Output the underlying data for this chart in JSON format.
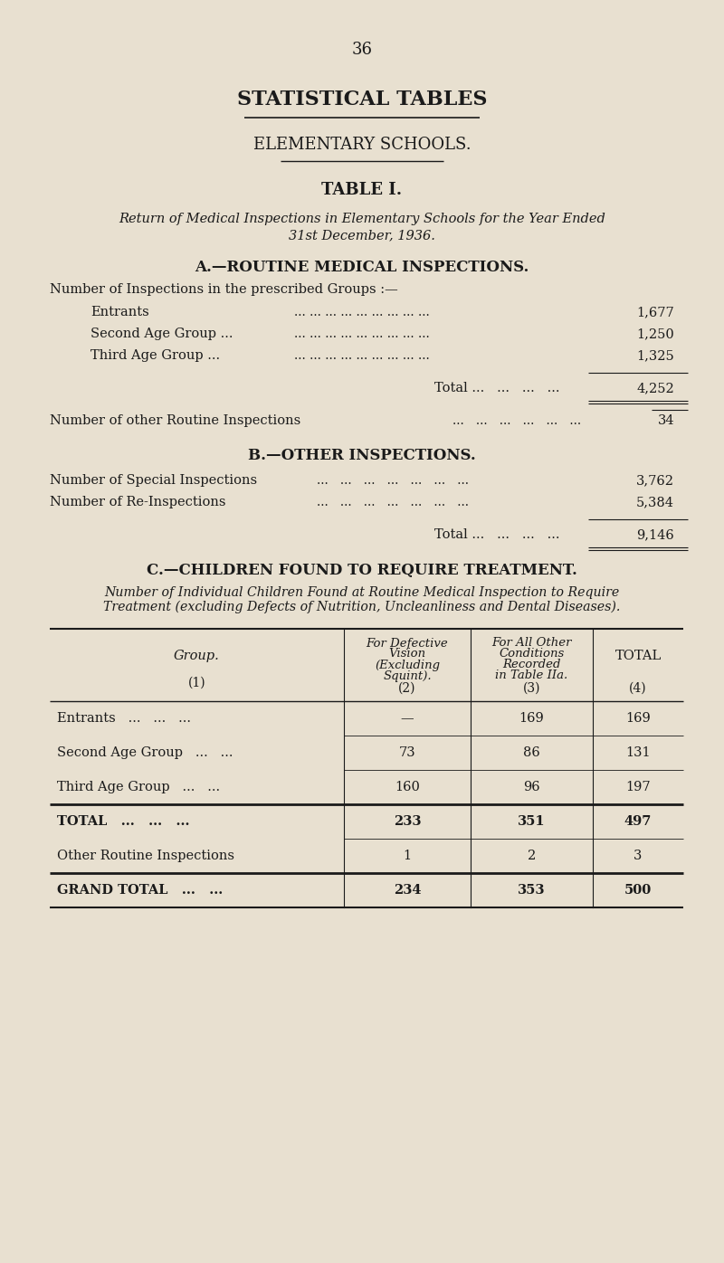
{
  "bg_color": "#e8e0d0",
  "text_color": "#1a1a1a",
  "page_number": "36",
  "main_title": "STATISTICAL TABLES",
  "sub_title": "ELEMENTARY SCHOOLS.",
  "table_title": "TABLE I.",
  "table_subtitle_line1": "Return of Medical Inspections in Elementary Schools for the Year Ended",
  "table_subtitle_line2": "31st December, 1936.",
  "section_a_title": "A.—ROUTINE MEDICAL INSPECTIONS.",
  "section_a_intro": "Number of Inspections in the prescribed Groups :—",
  "section_a_rows": [
    {
      "label": "Entrants",
      "dots": true,
      "value": "1,677"
    },
    {
      "label": "Second Age Group ...",
      "dots": true,
      "value": "1,250"
    },
    {
      "label": "Third Age Group ...",
      "dots": true,
      "value": "1,325"
    }
  ],
  "section_a_total_label": "Total ...",
  "section_a_total_value": "4,252",
  "section_a_other_label": "Number of other Routine Inspections",
  "section_a_other_value": "34",
  "section_b_title": "B.—OTHER INSPECTIONS.",
  "section_b_rows": [
    {
      "label": "Number of Special Inspections",
      "dots": true,
      "value": "3,762"
    },
    {
      "label": "Number of Re-Inspections",
      "dots": true,
      "value": "5,384"
    }
  ],
  "section_b_total_label": "Total ...",
  "section_b_total_value": "9,146",
  "section_c_title": "C.—CHILDREN FOUND TO REQUIRE TREATMENT.",
  "section_c_intro_line1": "Number of Individual Children Found at Routine Medical Inspection to Require",
  "section_c_intro_line2": "Treatment (excluding Defects of Nutrition, Uncleanliness and Dental Diseases).",
  "table_col_headers": [
    "Group.\n\n(1)",
    "For Defective\nVision\n(Excluding\nSquint).\n\n(2)",
    "For All Other\nConditions\nRecorded\nin Table IIa.\n\n(3)",
    "TOTAL\n\n\n\n\n(4)"
  ],
  "table_rows": [
    {
      "group": "Entrants   ...   ...   ...",
      "col2": "—",
      "col3": "169",
      "col4": "169",
      "bold": false,
      "thick_top": false
    },
    {
      "group": "Second Age Group   ...   ...",
      "col2": "73",
      "col3": "86",
      "col4": "131",
      "bold": false,
      "thick_top": false
    },
    {
      "group": "Third Age Group   ...   ...",
      "col2": "160",
      "col3": "96",
      "col4": "197",
      "bold": false,
      "thick_top": false
    },
    {
      "group": "TOTAL   ...   ...   ...",
      "col2": "233",
      "col3": "351",
      "col4": "497",
      "bold": true,
      "thick_top": true
    },
    {
      "group": "Other Routine Inspections",
      "col2": "1",
      "col3": "2",
      "col4": "3",
      "bold": false,
      "thick_top": false
    },
    {
      "group": "GRAND TOTAL   ...   ...",
      "col2": "234",
      "col3": "353",
      "col4": "500",
      "bold": true,
      "thick_top": true
    }
  ]
}
